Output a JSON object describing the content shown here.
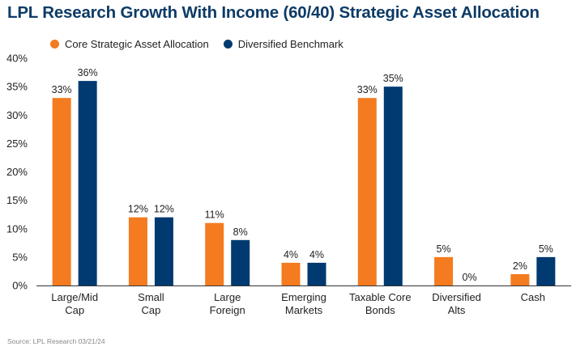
{
  "chart_data": {
    "type": "bar",
    "title": "LPL Research Growth With Income (60/40) Strategic Asset Allocation",
    "categories": [
      [
        "Large/Mid",
        "Cap"
      ],
      [
        "Small",
        "Cap"
      ],
      [
        "Large",
        "Foreign"
      ],
      [
        "Emerging",
        "Markets"
      ],
      [
        "Taxable Core",
        "Bonds"
      ],
      [
        "Diversified",
        "Alts"
      ],
      [
        "Cash"
      ]
    ],
    "series": [
      {
        "name": "Core Strategic Asset Allocation",
        "color": "#f47b20",
        "values": [
          33,
          12,
          11,
          4,
          33,
          5,
          2
        ],
        "labels": [
          "33%",
          "12%",
          "11%",
          "4%",
          "33%",
          "5%",
          "2%"
        ]
      },
      {
        "name": "Diversified Benchmark",
        "color": "#003a70",
        "values": [
          36,
          12,
          8,
          4,
          35,
          0,
          5
        ],
        "labels": [
          "36%",
          "12%",
          "8%",
          "4%",
          "35%",
          "0%",
          "5%"
        ]
      }
    ],
    "ylim": [
      0,
      40
    ],
    "yticks": [
      "0%",
      "5%",
      "10%",
      "15%",
      "20%",
      "25%",
      "30%",
      "35%",
      "40%"
    ],
    "ytick_values": [
      0,
      5,
      10,
      15,
      20,
      25,
      30,
      35,
      40
    ],
    "grid": false,
    "legend": "top-left"
  },
  "source": "Source: LPL Research 03/21/24"
}
